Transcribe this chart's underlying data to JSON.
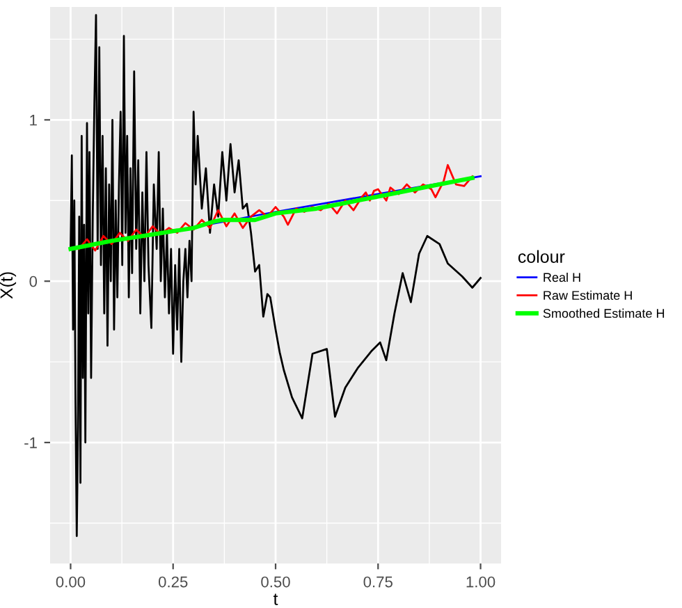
{
  "chart_data": {
    "type": "line",
    "xlabel": "t",
    "ylabel": "X(t)",
    "legend_title": "colour",
    "xlim": [
      -0.05,
      1.05
    ],
    "ylim": [
      -1.75,
      1.7
    ],
    "xticks": [
      {
        "value": 0,
        "label": "0.00"
      },
      {
        "value": 0.25,
        "label": "0.25"
      },
      {
        "value": 0.5,
        "label": "0.50"
      },
      {
        "value": 0.75,
        "label": "0.75"
      },
      {
        "value": 1,
        "label": "1.00"
      }
    ],
    "yticks": [
      -1,
      0,
      1
    ],
    "grid": true,
    "legend": "right",
    "marker": "none",
    "line_style": "solid",
    "series": [
      {
        "color": "#000000",
        "x": [
          0.0,
          0.003,
          0.006,
          0.009,
          0.012,
          0.015,
          0.018,
          0.021,
          0.024,
          0.027,
          0.03,
          0.033,
          0.036,
          0.04,
          0.043,
          0.046,
          0.05,
          0.054,
          0.058,
          0.062,
          0.066,
          0.07,
          0.074,
          0.078,
          0.082,
          0.086,
          0.09,
          0.094,
          0.098,
          0.102,
          0.106,
          0.11,
          0.114,
          0.118,
          0.122,
          0.126,
          0.13,
          0.134,
          0.138,
          0.142,
          0.146,
          0.15,
          0.155,
          0.16,
          0.165,
          0.17,
          0.175,
          0.18,
          0.185,
          0.19,
          0.197,
          0.203,
          0.21,
          0.215,
          0.22,
          0.225,
          0.23,
          0.235,
          0.24,
          0.245,
          0.25,
          0.255,
          0.26,
          0.265,
          0.27,
          0.275,
          0.28,
          0.285,
          0.29,
          0.295,
          0.3,
          0.305,
          0.31,
          0.32,
          0.33,
          0.34,
          0.35,
          0.36,
          0.37,
          0.38,
          0.39,
          0.4,
          0.41,
          0.42,
          0.43,
          0.44,
          0.45,
          0.46,
          0.47,
          0.48,
          0.487,
          0.5,
          0.51,
          0.52,
          0.54,
          0.565,
          0.59,
          0.625,
          0.645,
          0.67,
          0.7,
          0.735,
          0.755,
          0.77,
          0.79,
          0.81,
          0.83,
          0.85,
          0.87,
          0.9,
          0.92,
          0.955,
          0.98,
          1.0
        ],
        "values": [
          0.2,
          0.78,
          -0.3,
          0.5,
          -0.75,
          -1.58,
          -0.9,
          0.4,
          -1.25,
          0.9,
          -0.6,
          0.35,
          -1.0,
          0.98,
          -0.2,
          0.8,
          -0.6,
          0.4,
          1.1,
          1.65,
          0.2,
          1.45,
          0.1,
          0.9,
          -0.2,
          0.7,
          -0.4,
          0.6,
          0.0,
          1.0,
          -0.3,
          0.5,
          -0.1,
          0.6,
          1.05,
          0.1,
          1.52,
          0.3,
          0.9,
          -0.1,
          0.7,
          0.05,
          1.3,
          0.2,
          0.75,
          -0.2,
          0.55,
          0.0,
          0.8,
          0.1,
          -0.29,
          0.6,
          0.2,
          0.8,
          0.0,
          0.45,
          -0.1,
          0.3,
          -0.2,
          0.2,
          -0.45,
          0.1,
          -0.3,
          0.2,
          -0.5,
          0.0,
          0.2,
          -0.1,
          0.25,
          0.0,
          1.05,
          0.6,
          0.9,
          0.45,
          0.7,
          0.3,
          0.6,
          0.4,
          0.8,
          0.5,
          0.85,
          0.55,
          0.75,
          0.45,
          0.48,
          0.3,
          0.06,
          0.1,
          -0.22,
          -0.08,
          -0.1,
          -0.3,
          -0.44,
          -0.55,
          -0.72,
          -0.85,
          -0.45,
          -0.42,
          -0.84,
          -0.66,
          -0.54,
          -0.43,
          -0.38,
          -0.49,
          -0.2,
          0.05,
          -0.13,
          0.17,
          0.28,
          0.23,
          0.11,
          0.03,
          -0.04,
          0.02
        ]
      },
      {
        "name": "Real H",
        "color": "#0000ff",
        "x": [
          0.0,
          0.25,
          0.5,
          0.75,
          1.0
        ],
        "values": [
          0.2,
          0.31,
          0.43,
          0.54,
          0.65
        ]
      },
      {
        "name": "Raw Estimate H",
        "color": "#ff0000",
        "x": [
          0.02,
          0.04,
          0.06,
          0.08,
          0.1,
          0.12,
          0.14,
          0.16,
          0.18,
          0.2,
          0.22,
          0.24,
          0.26,
          0.28,
          0.3,
          0.32,
          0.34,
          0.36,
          0.38,
          0.4,
          0.42,
          0.44,
          0.46,
          0.48,
          0.5,
          0.52,
          0.53,
          0.55,
          0.57,
          0.59,
          0.61,
          0.63,
          0.65,
          0.67,
          0.69,
          0.71,
          0.72,
          0.73,
          0.74,
          0.75,
          0.77,
          0.78,
          0.8,
          0.82,
          0.84,
          0.86,
          0.88,
          0.89,
          0.91,
          0.92,
          0.94,
          0.96,
          0.98
        ],
        "values": [
          0.2,
          0.26,
          0.19,
          0.28,
          0.23,
          0.3,
          0.25,
          0.32,
          0.27,
          0.34,
          0.29,
          0.33,
          0.3,
          0.36,
          0.32,
          0.38,
          0.33,
          0.44,
          0.34,
          0.42,
          0.33,
          0.4,
          0.44,
          0.4,
          0.46,
          0.4,
          0.35,
          0.45,
          0.43,
          0.46,
          0.44,
          0.48,
          0.42,
          0.5,
          0.44,
          0.52,
          0.55,
          0.5,
          0.56,
          0.57,
          0.5,
          0.58,
          0.54,
          0.6,
          0.55,
          0.6,
          0.57,
          0.52,
          0.62,
          0.72,
          0.6,
          0.59,
          0.65
        ]
      },
      {
        "name": "Smoothed Estimate H",
        "color": "#00ff00",
        "x": [
          0.0,
          0.1,
          0.2,
          0.25,
          0.3,
          0.35,
          0.37,
          0.45,
          0.5,
          0.6,
          0.7,
          0.8,
          0.9,
          0.98
        ],
        "values": [
          0.2,
          0.25,
          0.29,
          0.31,
          0.33,
          0.37,
          0.38,
          0.38,
          0.42,
          0.45,
          0.5,
          0.55,
          0.6,
          0.64
        ]
      }
    ]
  }
}
